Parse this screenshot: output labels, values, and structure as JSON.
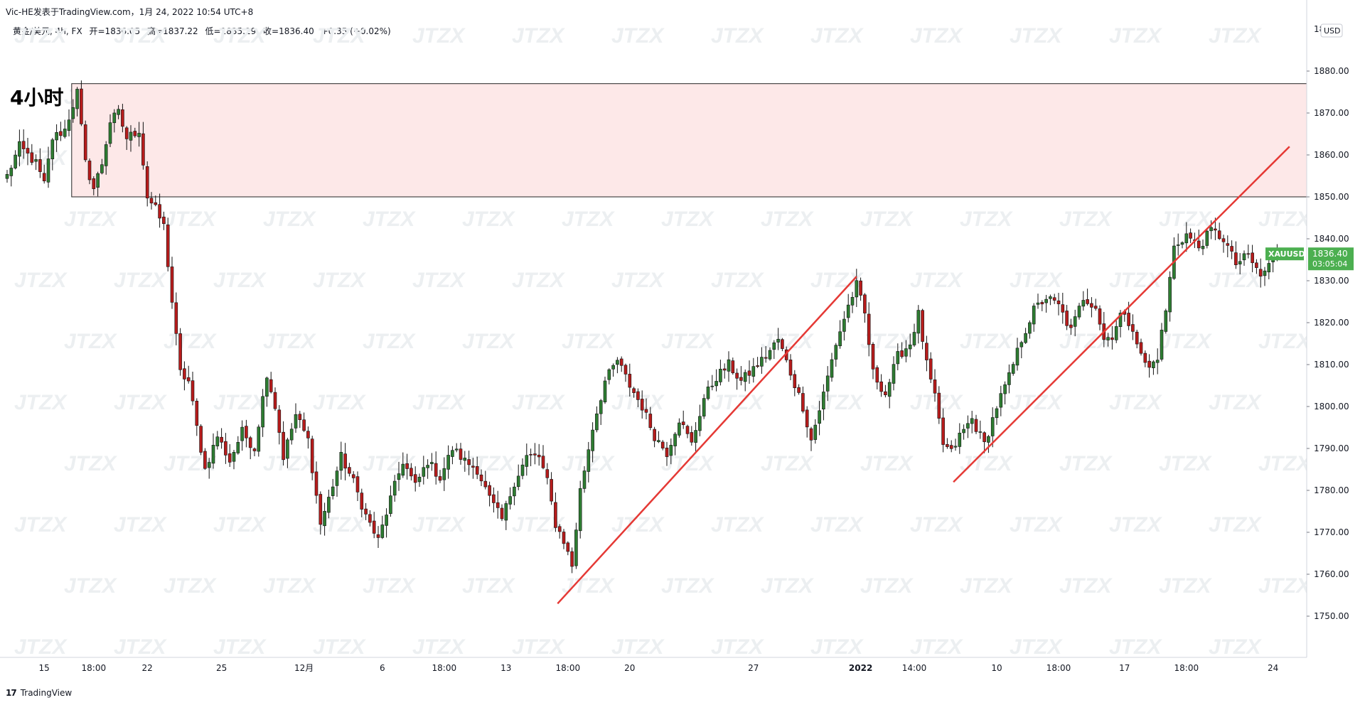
{
  "header": {
    "publisher_line": "Vic-HE发表于TradingView.com，1月 24, 2022 10:54 UTC+8"
  },
  "legend": {
    "symbol": "黄金/美元, 4h, FX",
    "open": "开=1836.05",
    "high": "高=1837.22",
    "low": "低=1835.19",
    "close": "收=1836.40",
    "change": "+0.35 (+0.02%)"
  },
  "footer": {
    "brand": "TradingView"
  },
  "colors": {
    "bull": "#2e7d32",
    "bear": "#b71c1c",
    "wick": "#111111",
    "trendline": "#e53935",
    "zone_fill": "#fde8e8",
    "zone_border": "#222222",
    "price_badge_bg": "#4caf50",
    "watermark": "#eceff1",
    "axis_text": "#131722"
  },
  "chart_data": {
    "type": "candlestick",
    "symbol_tag": "XAUUSD",
    "currency": "USD",
    "last_price": "1836.40",
    "countdown": "03:05:04",
    "annotation_label": "4小时",
    "watermark_text": "JTZX",
    "ylim": [
      1740,
      1890
    ],
    "yticks": [
      1750,
      1760,
      1770,
      1780,
      1790,
      1800,
      1810,
      1820,
      1830,
      1840,
      1850,
      1860,
      1870,
      1880
    ],
    "ytick_labels": [
      "1750.00",
      "1760.00",
      "1770.00",
      "1780.00",
      "1790.00",
      "1800.00",
      "1810.00",
      "1820.00",
      "1830.00",
      "1840.00",
      "1850.00",
      "1860.00",
      "1870.00",
      "1880.00"
    ],
    "top_clipped_label": "18",
    "x_ticks": [
      {
        "label": "15",
        "index": 9
      },
      {
        "label": "18:00",
        "index": 21
      },
      {
        "label": "22",
        "index": 34
      },
      {
        "label": "25",
        "index": 52
      },
      {
        "label": "12月",
        "index": 72
      },
      {
        "label": "6",
        "index": 91
      },
      {
        "label": "18:00",
        "index": 106
      },
      {
        "label": "13",
        "index": 121
      },
      {
        "label": "18:00",
        "index": 136
      },
      {
        "label": "20",
        "index": 151
      },
      {
        "label": "27",
        "index": 181
      },
      {
        "label": "2022",
        "index": 207,
        "bold": true
      },
      {
        "label": "14:00",
        "index": 220
      },
      {
        "label": "10",
        "index": 240
      },
      {
        "label": "18:00",
        "index": 255
      },
      {
        "label": "17",
        "index": 271
      },
      {
        "label": "18:00",
        "index": 286
      },
      {
        "label": "24",
        "index": 307
      }
    ],
    "resistance_zone": {
      "from_index": 16,
      "low": 1850,
      "high": 1877
    },
    "trendlines": [
      {
        "x1": 133.5,
        "y1": 1753,
        "x2": 206,
        "y2": 1831
      },
      {
        "x1": 229.5,
        "y1": 1782,
        "x2": 311,
        "y2": 1862
      }
    ],
    "anchors": [
      [
        0,
        1855
      ],
      [
        3,
        1862
      ],
      [
        7,
        1858
      ],
      [
        9,
        1853
      ],
      [
        11,
        1864
      ],
      [
        14,
        1866
      ],
      [
        17,
        1875
      ],
      [
        19,
        1858
      ],
      [
        21,
        1852
      ],
      [
        23,
        1858
      ],
      [
        25,
        1868
      ],
      [
        27,
        1870
      ],
      [
        29,
        1864
      ],
      [
        32,
        1866
      ],
      [
        34,
        1850
      ],
      [
        36,
        1847
      ],
      [
        38,
        1843
      ],
      [
        40,
        1825
      ],
      [
        42,
        1808
      ],
      [
        44,
        1806
      ],
      [
        46,
        1795
      ],
      [
        48,
        1785
      ],
      [
        51,
        1793
      ],
      [
        54,
        1787
      ],
      [
        57,
        1794
      ],
      [
        60,
        1790
      ],
      [
        63,
        1808
      ],
      [
        65,
        1800
      ],
      [
        67,
        1788
      ],
      [
        70,
        1798
      ],
      [
        73,
        1792
      ],
      [
        76,
        1772
      ],
      [
        78,
        1778
      ],
      [
        81,
        1788
      ],
      [
        84,
        1782
      ],
      [
        87,
        1774
      ],
      [
        90,
        1768
      ],
      [
        93,
        1778
      ],
      [
        96,
        1787
      ],
      [
        99,
        1781
      ],
      [
        102,
        1787
      ],
      [
        105,
        1783
      ],
      [
        108,
        1790
      ],
      [
        111,
        1787
      ],
      [
        114,
        1785
      ],
      [
        117,
        1778
      ],
      [
        120,
        1773
      ],
      [
        123,
        1782
      ],
      [
        126,
        1788
      ],
      [
        129,
        1788
      ],
      [
        131,
        1782
      ],
      [
        133,
        1772
      ],
      [
        135,
        1768
      ],
      [
        137,
        1762
      ],
      [
        139,
        1780
      ],
      [
        142,
        1795
      ],
      [
        145,
        1806
      ],
      [
        148,
        1811
      ],
      [
        151,
        1805
      ],
      [
        154,
        1800
      ],
      [
        157,
        1793
      ],
      [
        160,
        1789
      ],
      [
        163,
        1797
      ],
      [
        166,
        1791
      ],
      [
        169,
        1802
      ],
      [
        172,
        1807
      ],
      [
        175,
        1810
      ],
      [
        178,
        1806
      ],
      [
        181,
        1809
      ],
      [
        184,
        1812
      ],
      [
        187,
        1816
      ],
      [
        190,
        1808
      ],
      [
        193,
        1800
      ],
      [
        195,
        1792
      ],
      [
        198,
        1803
      ],
      [
        201,
        1815
      ],
      [
        204,
        1824
      ],
      [
        206,
        1829
      ],
      [
        208,
        1822
      ],
      [
        210,
        1808
      ],
      [
        213,
        1803
      ],
      [
        216,
        1812
      ],
      [
        219,
        1815
      ],
      [
        221,
        1822
      ],
      [
        223,
        1810
      ],
      [
        225,
        1802
      ],
      [
        227,
        1791
      ],
      [
        229,
        1789
      ],
      [
        231,
        1793
      ],
      [
        234,
        1797
      ],
      [
        237,
        1791
      ],
      [
        240,
        1800
      ],
      [
        243,
        1807
      ],
      [
        246,
        1816
      ],
      [
        249,
        1823
      ],
      [
        252,
        1826
      ],
      [
        255,
        1824
      ],
      [
        258,
        1818
      ],
      [
        261,
        1826
      ],
      [
        264,
        1824
      ],
      [
        266,
        1816
      ],
      [
        268,
        1817
      ],
      [
        270,
        1822
      ],
      [
        273,
        1819
      ],
      [
        275,
        1812
      ],
      [
        277,
        1809
      ],
      [
        279,
        1812
      ],
      [
        281,
        1823
      ],
      [
        283,
        1838
      ],
      [
        286,
        1841
      ],
      [
        289,
        1838
      ],
      [
        292,
        1842
      ],
      [
        295,
        1840
      ],
      [
        298,
        1834
      ],
      [
        301,
        1836
      ],
      [
        304,
        1831
      ],
      [
        307,
        1835
      ],
      [
        308,
        1836.4
      ]
    ]
  }
}
